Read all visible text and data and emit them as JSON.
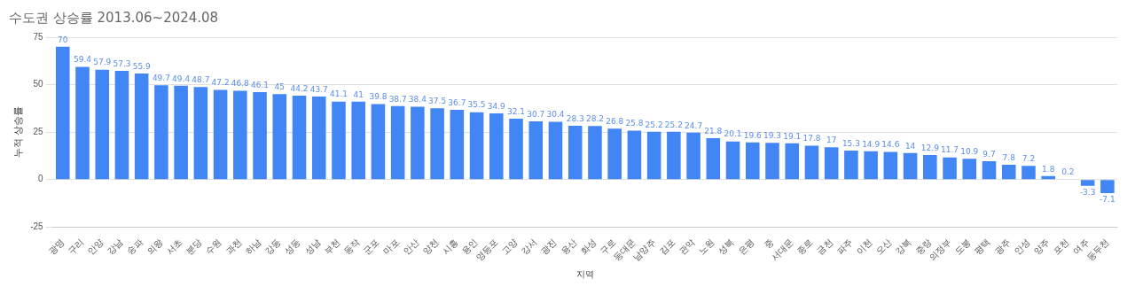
{
  "chart_data": {
    "type": "bar",
    "title": "수도권 상승률 2013.06~2024.08",
    "xlabel": "지역",
    "ylabel": "누적 상승률",
    "categories": [
      "광명",
      "구리",
      "안양",
      "강남",
      "송파",
      "의왕",
      "서초",
      "분당",
      "수원",
      "과천",
      "하남",
      "강동",
      "성동",
      "성남",
      "부천",
      "동작",
      "군포",
      "마포",
      "안산",
      "양천",
      "시흥",
      "용인",
      "영등포",
      "고양",
      "강서",
      "광진",
      "용산",
      "화성",
      "구로",
      "동대문",
      "남양주",
      "김포",
      "관악",
      "노원",
      "성북",
      "은평",
      "중",
      "서대문",
      "종로",
      "금천",
      "파주",
      "이천",
      "오산",
      "강북",
      "중랑",
      "의정부",
      "도봉",
      "평택",
      "광주",
      "안성",
      "양주",
      "포천",
      "여주",
      "동두천"
    ],
    "values": [
      70,
      59.4,
      57.9,
      57.3,
      55.9,
      49.7,
      49.4,
      48.7,
      47.2,
      46.8,
      46.1,
      45,
      44.2,
      43.7,
      41.1,
      41,
      39.8,
      38.7,
      38.4,
      37.5,
      36.7,
      35.5,
      34.9,
      32.1,
      30.7,
      30.4,
      28.3,
      28.2,
      26.8,
      25.8,
      25.2,
      25.2,
      24.7,
      21.8,
      20.1,
      19.6,
      19.3,
      19.1,
      17.8,
      17,
      15.3,
      14.9,
      14.6,
      14,
      12.9,
      11.7,
      10.9,
      9.7,
      7.8,
      7.2,
      1.8,
      0.2,
      -3.3,
      -7.1
    ],
    "color": "#4285f4",
    "ylim": [
      -25,
      75
    ],
    "yticks": [
      -25,
      0,
      25,
      50,
      75
    ],
    "grid": "y",
    "data_labels": true,
    "legend": false
  }
}
